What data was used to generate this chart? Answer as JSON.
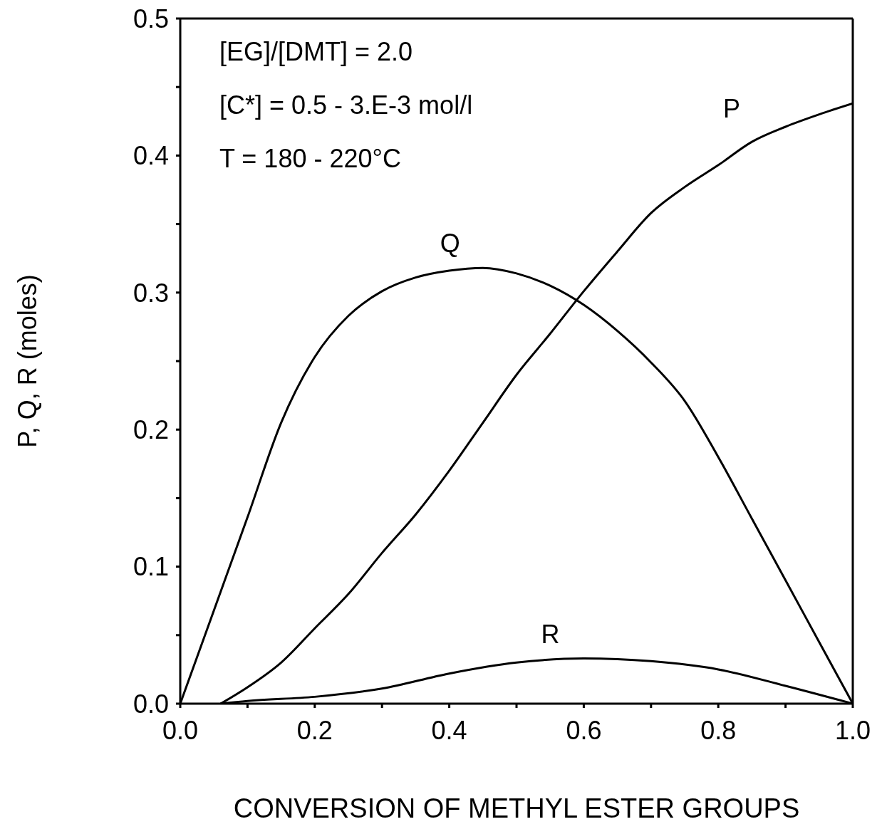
{
  "chart_data": {
    "type": "line",
    "xlabel": "CONVERSION OF METHYL ESTER GROUPS",
    "ylabel": "P, Q, R  (moles)",
    "annotations": [
      "[EG]/[DMT] = 2.0",
      "[C*] = 0.5 - 3.E-3 mol/l",
      "T = 180 - 220°C"
    ],
    "xlim": [
      0,
      1.0
    ],
    "ylim": [
      0,
      0.5
    ],
    "xticks": [
      {
        "value": 0,
        "label": "0.0"
      },
      {
        "value": 0.1,
        "label": null
      },
      0.2,
      {
        "value": 0.3,
        "label": null
      },
      0.4,
      {
        "value": 0.5,
        "label": null
      },
      0.6,
      {
        "value": 0.7,
        "label": null
      },
      0.8,
      {
        "value": 0.9,
        "label": null
      },
      {
        "value": 1.0,
        "label": "1.0"
      }
    ],
    "yticks": [
      {
        "value": 0,
        "label": "0.0"
      },
      {
        "value": 0.05,
        "label": null
      },
      0.1,
      {
        "value": 0.15,
        "label": null
      },
      0.2,
      {
        "value": 0.25,
        "label": null
      },
      0.3,
      {
        "value": 0.35,
        "label": null
      },
      0.4,
      {
        "value": 0.45,
        "label": null
      },
      0.5
    ],
    "marker": "none",
    "line_style": "solid",
    "series": [
      {
        "name": "P",
        "color": "#000000",
        "x": [
          0.06,
          0.1,
          0.15,
          0.2,
          0.25,
          0.3,
          0.35,
          0.4,
          0.45,
          0.5,
          0.55,
          0.6,
          0.65,
          0.7,
          0.75,
          0.8,
          0.85,
          0.9,
          0.95,
          1.0
        ],
        "values": [
          0,
          0.012,
          0.03,
          0.055,
          0.08,
          0.11,
          0.138,
          0.17,
          0.205,
          0.24,
          0.27,
          0.301,
          0.33,
          0.358,
          0.377,
          0.393,
          0.41,
          0.421,
          0.43,
          0.438
        ]
      },
      {
        "name": "Q",
        "color": "#000000",
        "x": [
          0,
          0.05,
          0.1,
          0.15,
          0.2,
          0.25,
          0.3,
          0.35,
          0.4,
          0.45,
          0.5,
          0.55,
          0.6,
          0.65,
          0.7,
          0.75,
          0.8,
          0.85,
          0.9,
          0.95,
          1.0
        ],
        "values": [
          0,
          0.068,
          0.136,
          0.205,
          0.253,
          0.283,
          0.301,
          0.311,
          0.316,
          0.318,
          0.314,
          0.305,
          0.291,
          0.272,
          0.249,
          0.221,
          0.18,
          0.135,
          0.09,
          0.045,
          0
        ]
      },
      {
        "name": "R",
        "color": "#000000",
        "x": [
          0.06,
          0.1,
          0.2,
          0.3,
          0.4,
          0.5,
          0.6,
          0.7,
          0.8,
          0.9,
          1.0
        ],
        "values": [
          0,
          0.002,
          0.005,
          0.011,
          0.022,
          0.03,
          0.033,
          0.031,
          0.025,
          0.013,
          0
        ]
      }
    ]
  }
}
